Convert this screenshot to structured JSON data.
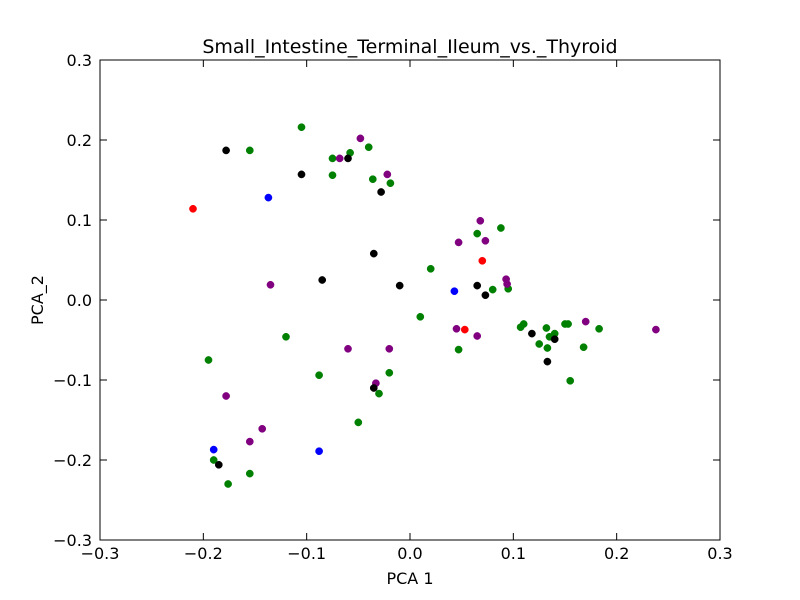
{
  "chart_data": {
    "type": "scatter",
    "title": "Small_Intestine_Terminal_Ileum_vs._Thyroid",
    "xlabel": "PCA 1",
    "ylabel": "PCA_2",
    "xlim": [
      -0.3,
      0.3
    ],
    "ylim": [
      -0.3,
      0.3
    ],
    "xticks": [
      -0.3,
      -0.2,
      -0.1,
      0.0,
      0.1,
      0.2,
      0.3
    ],
    "yticks": [
      -0.3,
      -0.2,
      -0.1,
      0.0,
      0.1,
      0.2,
      0.3
    ],
    "xtick_labels": [
      "−0.3",
      "−0.2",
      "−0.1",
      "0.0",
      "0.1",
      "0.2",
      "0.3"
    ],
    "ytick_labels": [
      "−0.3",
      "−0.2",
      "−0.1",
      "0.0",
      "0.1",
      "0.2",
      "0.3"
    ],
    "grid": false,
    "series": [
      {
        "color": "#008000",
        "points": [
          [
            -0.155,
            0.187
          ],
          [
            -0.105,
            0.216
          ],
          [
            -0.075,
            0.177
          ],
          [
            -0.058,
            0.184
          ],
          [
            -0.04,
            0.191
          ],
          [
            -0.075,
            0.156
          ],
          [
            -0.036,
            0.151
          ],
          [
            -0.019,
            0.146
          ],
          [
            0.02,
            0.039
          ],
          [
            0.065,
            0.083
          ],
          [
            0.088,
            0.09
          ],
          [
            0.095,
            0.014
          ],
          [
            0.08,
            0.013
          ],
          [
            0.01,
            -0.021
          ],
          [
            -0.12,
            -0.046
          ],
          [
            -0.195,
            -0.075
          ],
          [
            -0.088,
            -0.094
          ],
          [
            -0.02,
            -0.091
          ],
          [
            -0.03,
            -0.117
          ],
          [
            -0.05,
            -0.153
          ],
          [
            -0.19,
            -0.2
          ],
          [
            -0.155,
            -0.217
          ],
          [
            -0.176,
            -0.23
          ],
          [
            0.047,
            -0.062
          ],
          [
            0.107,
            -0.034
          ],
          [
            0.11,
            -0.03
          ],
          [
            0.125,
            -0.055
          ],
          [
            0.132,
            -0.035
          ],
          [
            0.135,
            -0.046
          ],
          [
            0.14,
            -0.042
          ],
          [
            0.133,
            -0.06
          ],
          [
            0.15,
            -0.03
          ],
          [
            0.153,
            -0.03
          ],
          [
            0.155,
            -0.101
          ],
          [
            0.168,
            -0.059
          ],
          [
            0.183,
            -0.036
          ]
        ]
      },
      {
        "color": "#800080",
        "points": [
          [
            -0.048,
            0.202
          ],
          [
            -0.068,
            0.177
          ],
          [
            -0.022,
            0.157
          ],
          [
            0.068,
            0.099
          ],
          [
            0.047,
            0.072
          ],
          [
            0.073,
            0.074
          ],
          [
            0.093,
            0.026
          ],
          [
            0.094,
            0.02
          ],
          [
            -0.135,
            0.019
          ],
          [
            0.045,
            -0.036
          ],
          [
            0.065,
            -0.045
          ],
          [
            -0.06,
            -0.061
          ],
          [
            -0.02,
            -0.061
          ],
          [
            -0.033,
            -0.104
          ],
          [
            -0.178,
            -0.12
          ],
          [
            -0.143,
            -0.161
          ],
          [
            -0.155,
            -0.177
          ],
          [
            0.17,
            -0.027
          ],
          [
            0.238,
            -0.037
          ]
        ]
      },
      {
        "color": "#000000",
        "points": [
          [
            -0.178,
            0.187
          ],
          [
            -0.105,
            0.157
          ],
          [
            -0.06,
            0.177
          ],
          [
            -0.028,
            0.135
          ],
          [
            -0.035,
            0.058
          ],
          [
            -0.085,
            0.025
          ],
          [
            -0.01,
            0.018
          ],
          [
            0.065,
            0.018
          ],
          [
            0.073,
            0.006
          ],
          [
            0.118,
            -0.042
          ],
          [
            0.14,
            -0.049
          ],
          [
            0.133,
            -0.077
          ],
          [
            -0.035,
            -0.11
          ],
          [
            -0.185,
            -0.206
          ]
        ]
      },
      {
        "color": "#0000ff",
        "points": [
          [
            -0.137,
            0.128
          ],
          [
            0.043,
            0.011
          ],
          [
            -0.19,
            -0.187
          ],
          [
            -0.088,
            -0.189
          ]
        ]
      },
      {
        "color": "#ff0000",
        "points": [
          [
            -0.21,
            0.114
          ],
          [
            0.07,
            0.049
          ],
          [
            0.053,
            -0.037
          ]
        ]
      }
    ]
  }
}
